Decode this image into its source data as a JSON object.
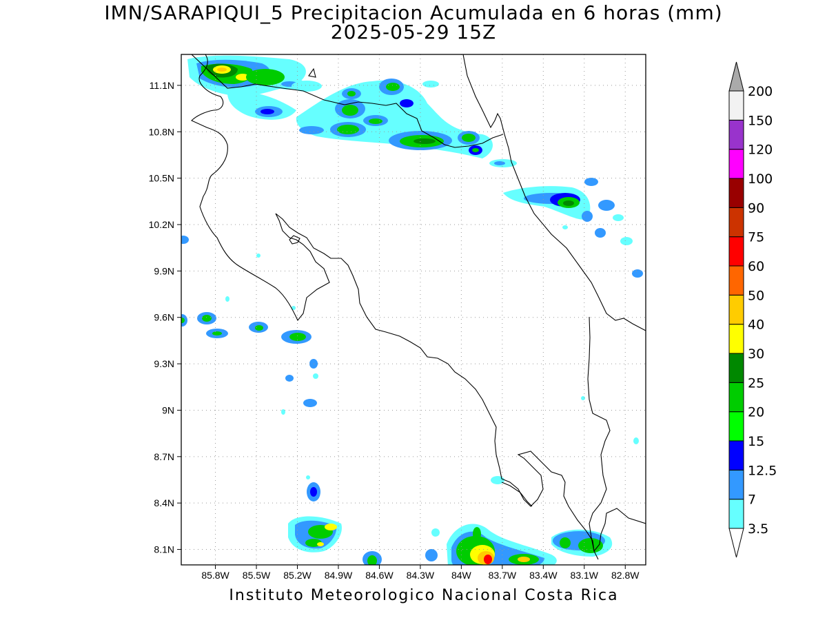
{
  "title": "IMN/SARAPIQUI_5 Precipitacion Acumulada en 6 horas (mm)",
  "subtitle": "2025-05-29 15Z",
  "footer": "Instituto Meteorologico Nacional Costa Rica",
  "map": {
    "lon_range": [
      -86.05,
      -82.65
    ],
    "lat_range": [
      8.0,
      11.3
    ],
    "lat_ticks": [
      {
        "value": 11.1,
        "label": "11.1N"
      },
      {
        "value": 10.8,
        "label": "10.8N"
      },
      {
        "value": 10.5,
        "label": "10.5N"
      },
      {
        "value": 10.2,
        "label": "10.2N"
      },
      {
        "value": 9.9,
        "label": "9.9N"
      },
      {
        "value": 9.6,
        "label": "9.6N"
      },
      {
        "value": 9.3,
        "label": "9.3N"
      },
      {
        "value": 9.0,
        "label": "9N"
      },
      {
        "value": 8.7,
        "label": "8.7N"
      },
      {
        "value": 8.4,
        "label": "8.4N"
      },
      {
        "value": 8.1,
        "label": "8.1N"
      }
    ],
    "lon_ticks": [
      {
        "value": -85.8,
        "label": "85.8W"
      },
      {
        "value": -85.5,
        "label": "85.5W"
      },
      {
        "value": -85.2,
        "label": "85.2W"
      },
      {
        "value": -84.9,
        "label": "84.9W"
      },
      {
        "value": -84.6,
        "label": "84.6W"
      },
      {
        "value": -84.3,
        "label": "84.3W"
      },
      {
        "value": -84.0,
        "label": "84W"
      },
      {
        "value": -83.7,
        "label": "83.7W"
      },
      {
        "value": -83.4,
        "label": "83.4W"
      },
      {
        "value": -83.1,
        "label": "83.1W"
      },
      {
        "value": -82.8,
        "label": "82.8W"
      }
    ],
    "grid": true
  },
  "colorbar": {
    "labels": [
      "3.5",
      "7",
      "12.5",
      "15",
      "20",
      "25",
      "30",
      "40",
      "50",
      "60",
      "75",
      "90",
      "100",
      "120",
      "150",
      "200"
    ],
    "colors": [
      "#66ffff",
      "#3399ff",
      "#0000ff",
      "#00ff00",
      "#00cc00",
      "#008800",
      "#ffff00",
      "#ffcc00",
      "#ff6600",
      "#ff0000",
      "#cc3300",
      "#990000",
      "#ff00ff",
      "#9933cc",
      "#f2f2f2"
    ],
    "over_color": "#aaaaaa",
    "under_color": "#ffffff"
  }
}
